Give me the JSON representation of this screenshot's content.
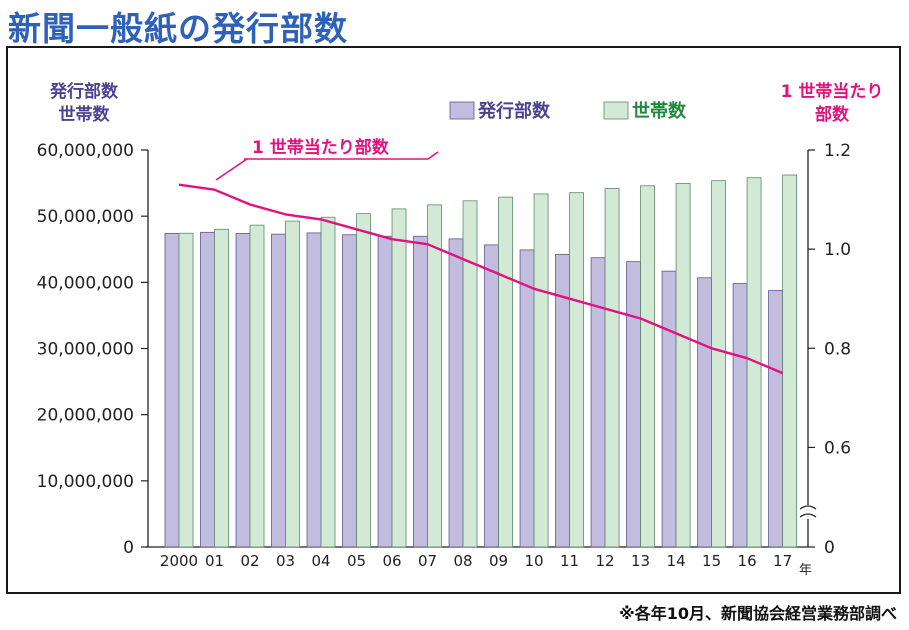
{
  "page": {
    "title": "新聞一般紙の発行部数",
    "source_note": "※各年10月、新聞協会経営業務部調べ"
  },
  "colors": {
    "title": "#2e62b8",
    "circulation_fill": "#c2bddf",
    "circulation_stroke": "#5b5792",
    "households_fill": "#d2e9d6",
    "households_stroke": "#5d8b68",
    "per_household_line": "#e0137e",
    "circulation_text": "#4a4393",
    "households_text": "#1f8a3a",
    "per_household_text": "#e0137e"
  },
  "chart_data": {
    "type": "bar",
    "categories": [
      "2000",
      "01",
      "02",
      "03",
      "04",
      "05",
      "06",
      "07",
      "08",
      "09",
      "10",
      "11",
      "12",
      "13",
      "14",
      "15",
      "16",
      "17"
    ],
    "x_unit": "年",
    "y_left_label_lines": [
      "発行部数",
      "世帯数"
    ],
    "y_left_lim": [
      0,
      60000000
    ],
    "y_left_ticks": [
      "0",
      "10,000,000",
      "20,000,000",
      "30,000,000",
      "40,000,000",
      "50,000,000",
      "60,000,000"
    ],
    "y_right_label_lines": [
      "1 世帯当たり",
      "部数"
    ],
    "y_right_lim": [
      0.5,
      1.2
    ],
    "y_right_ticks": [
      "0",
      "0.6",
      "0.8",
      "1.0",
      "1.2"
    ],
    "y_right_break": true,
    "legend": [
      {
        "key": "circulation",
        "label": "発行部数"
      },
      {
        "key": "households",
        "label": "世帯数"
      }
    ],
    "line_label": "1 世帯当たり部数",
    "series": [
      {
        "key": "circulation",
        "name": "発行部数",
        "kind": "bar",
        "axis": "left",
        "values": [
          47400000,
          47560000,
          47390000,
          47280000,
          47470000,
          47190000,
          46960000,
          46960000,
          46570000,
          45660000,
          44900000,
          44230000,
          43720000,
          43130000,
          41690000,
          40690000,
          39820000,
          38760000
        ]
      },
      {
        "key": "households",
        "name": "世帯数",
        "kind": "bar",
        "axis": "left",
        "values": [
          47420000,
          48020000,
          48640000,
          49260000,
          49840000,
          50380000,
          51100000,
          51710000,
          52320000,
          52880000,
          53360000,
          53550000,
          54170000,
          54590000,
          54950000,
          55360000,
          55810000,
          56220000
        ]
      },
      {
        "key": "per_household",
        "name": "1 世帯当たり部数",
        "kind": "line",
        "axis": "right",
        "values": [
          1.13,
          1.12,
          1.09,
          1.07,
          1.06,
          1.04,
          1.02,
          1.01,
          0.98,
          0.95,
          0.92,
          0.9,
          0.88,
          0.86,
          0.83,
          0.8,
          0.78,
          0.75
        ]
      }
    ]
  }
}
